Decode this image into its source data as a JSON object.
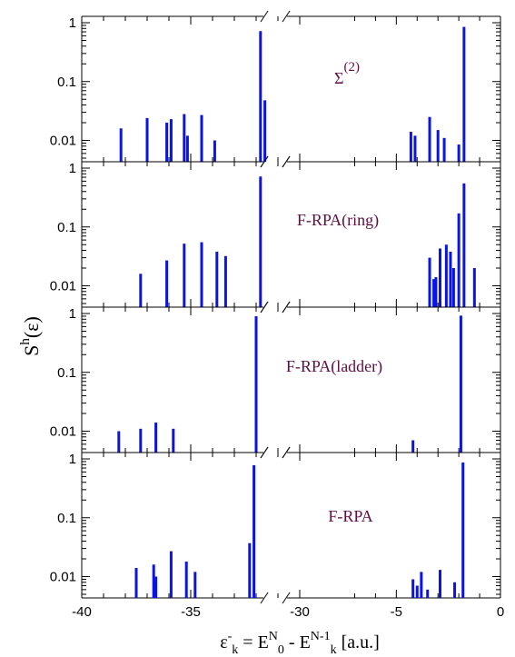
{
  "chart_data": {
    "type": "bar",
    "layout": "4 vertically stacked spike (stick) panels sharing a broken x-axis",
    "x_scale": "linear, broken between -32 (approx) and -5",
    "y_scale": "log",
    "ylim": [
      0.005,
      1.3
    ],
    "y_ticks": [
      {
        "value": 1,
        "label": "1"
      },
      {
        "value": 0.1,
        "label": "0.1"
      },
      {
        "value": 0.01,
        "label": "0.01"
      }
    ],
    "x_segments": [
      {
        "range": [
          -40,
          -30
        ],
        "ticks": [
          {
            "value": -40,
            "label": "-40"
          },
          {
            "value": -35,
            "label": "-35"
          },
          {
            "value": -30,
            "label": "-30"
          }
        ]
      },
      {
        "range": [
          -7.5,
          0
        ],
        "ticks": [
          {
            "value": -5,
            "label": "-5"
          },
          {
            "value": 0,
            "label": "0"
          }
        ]
      }
    ],
    "ylabel": {
      "main": "S",
      "sup": "h",
      "rest": "(ε)"
    },
    "xlabel": {
      "parts": [
        {
          "t": "ε",
          "s": "n"
        },
        {
          "t": "-",
          "s": "sup"
        },
        {
          "t": "k",
          "s": "sub"
        },
        {
          "t": " = E",
          "s": "n"
        },
        {
          "t": "N",
          "s": "sup"
        },
        {
          "t": "0",
          "s": "sub"
        },
        {
          "t": " - E",
          "s": "n"
        },
        {
          "t": "N-1",
          "s": "sup"
        },
        {
          "t": "k",
          "s": "sub"
        },
        {
          "t": " [a.u.]",
          "s": "n"
        }
      ]
    },
    "bar_color": "#0a14e6",
    "label_color": "#5f1040",
    "panels": [
      {
        "label": "Σ",
        "label_sup": "(2)",
        "bars": [
          {
            "x": -38.2,
            "y": 0.016
          },
          {
            "x": -37.0,
            "y": 0.024
          },
          {
            "x": -36.1,
            "y": 0.02
          },
          {
            "x": -35.9,
            "y": 0.023
          },
          {
            "x": -35.3,
            "y": 0.028
          },
          {
            "x": -35.15,
            "y": 0.012
          },
          {
            "x": -34.5,
            "y": 0.027
          },
          {
            "x": -33.9,
            "y": 0.01
          },
          {
            "x": -31.8,
            "y": 0.72
          },
          {
            "x": -31.6,
            "y": 0.048
          },
          {
            "x": -4.3,
            "y": 0.014
          },
          {
            "x": -4.1,
            "y": 0.012
          },
          {
            "x": -3.4,
            "y": 0.025
          },
          {
            "x": -3.0,
            "y": 0.015
          },
          {
            "x": -2.7,
            "y": 0.011
          },
          {
            "x": -2.0,
            "y": 0.0085
          },
          {
            "x": -1.75,
            "y": 0.85
          }
        ]
      },
      {
        "label": "F-RPA(ring)",
        "label_sup": "",
        "bars": [
          {
            "x": -37.3,
            "y": 0.016
          },
          {
            "x": -36.1,
            "y": 0.027
          },
          {
            "x": -35.3,
            "y": 0.052
          },
          {
            "x": -34.5,
            "y": 0.055
          },
          {
            "x": -33.8,
            "y": 0.038
          },
          {
            "x": -33.4,
            "y": 0.032
          },
          {
            "x": -31.8,
            "y": 0.72
          },
          {
            "x": -3.4,
            "y": 0.03
          },
          {
            "x": -3.2,
            "y": 0.013
          },
          {
            "x": -3.1,
            "y": 0.014
          },
          {
            "x": -2.9,
            "y": 0.043
          },
          {
            "x": -2.6,
            "y": 0.05
          },
          {
            "x": -2.4,
            "y": 0.038
          },
          {
            "x": -2.25,
            "y": 0.02
          },
          {
            "x": -2.0,
            "y": 0.17
          },
          {
            "x": -1.75,
            "y": 0.55
          },
          {
            "x": -1.25,
            "y": 0.02
          }
        ]
      },
      {
        "label": "F-RPA(ladder)",
        "label_sup": "",
        "bars": [
          {
            "x": -38.3,
            "y": 0.01
          },
          {
            "x": -37.3,
            "y": 0.011
          },
          {
            "x": -36.6,
            "y": 0.014
          },
          {
            "x": -35.8,
            "y": 0.011
          },
          {
            "x": -32.0,
            "y": 0.9
          },
          {
            "x": -4.2,
            "y": 0.007
          },
          {
            "x": -1.9,
            "y": 0.92
          }
        ]
      },
      {
        "label": "F-RPA",
        "label_sup": "",
        "bars": [
          {
            "x": -37.5,
            "y": 0.014
          },
          {
            "x": -36.7,
            "y": 0.016
          },
          {
            "x": -36.6,
            "y": 0.01
          },
          {
            "x": -35.9,
            "y": 0.027
          },
          {
            "x": -35.2,
            "y": 0.018
          },
          {
            "x": -34.8,
            "y": 0.012
          },
          {
            "x": -32.3,
            "y": 0.037
          },
          {
            "x": -32.1,
            "y": 0.78
          },
          {
            "x": -4.2,
            "y": 0.009
          },
          {
            "x": -4.0,
            "y": 0.007
          },
          {
            "x": -3.8,
            "y": 0.012
          },
          {
            "x": -3.5,
            "y": 0.006
          },
          {
            "x": -2.9,
            "y": 0.013
          },
          {
            "x": -2.2,
            "y": 0.008
          },
          {
            "x": -1.8,
            "y": 0.87
          }
        ]
      }
    ]
  }
}
